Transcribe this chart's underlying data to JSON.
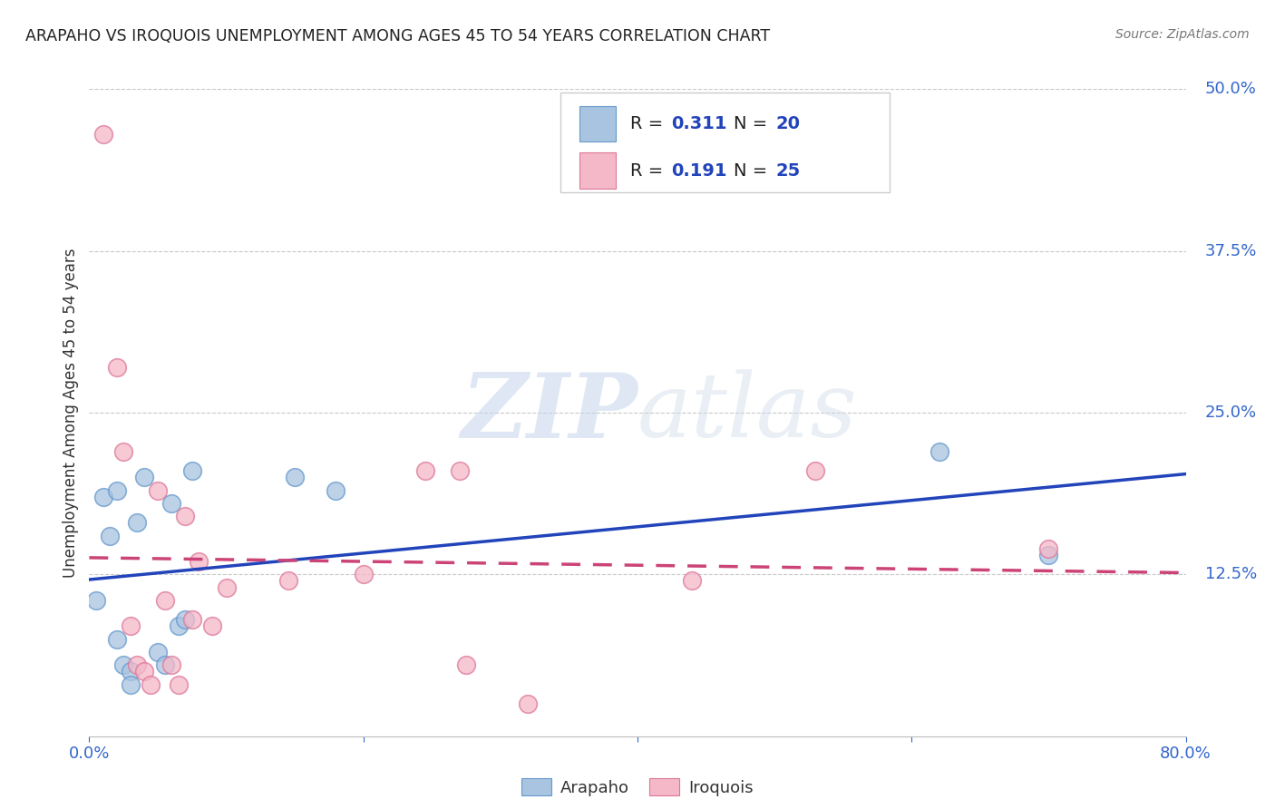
{
  "title": "ARAPAHO VS IROQUOIS UNEMPLOYMENT AMONG AGES 45 TO 54 YEARS CORRELATION CHART",
  "source": "Source: ZipAtlas.com",
  "ylabel": "Unemployment Among Ages 45 to 54 years",
  "xlim": [
    0.0,
    0.8
  ],
  "ylim": [
    0.0,
    0.5
  ],
  "xticks": [
    0.0,
    0.2,
    0.4,
    0.6,
    0.8
  ],
  "xticklabels": [
    "0.0%",
    "",
    "",
    "",
    "80.0%"
  ],
  "ytick_right_labels": [
    "50.0%",
    "37.5%",
    "25.0%",
    "12.5%",
    ""
  ],
  "ytick_right_values": [
    0.5,
    0.375,
    0.25,
    0.125,
    0.0
  ],
  "background_color": "#ffffff",
  "grid_color": "#c8c8c8",
  "watermark_zip": "ZIP",
  "watermark_atlas": "atlas",
  "arapaho_color": "#a8c4e0",
  "arapaho_edge_color": "#6699cc",
  "iroquois_color": "#f4b8c8",
  "iroquois_edge_color": "#dd7799",
  "arapaho_line_color": "#2244bb",
  "iroquois_line_color": "#cc4477",
  "legend_text_color": "#2244bb",
  "legend_R_color": "#2244bb",
  "arapaho_x": [
    0.005,
    0.01,
    0.015,
    0.02,
    0.02,
    0.025,
    0.03,
    0.03,
    0.035,
    0.04,
    0.05,
    0.055,
    0.06,
    0.065,
    0.07,
    0.075,
    0.15,
    0.18,
    0.62,
    0.7
  ],
  "arapaho_y": [
    0.105,
    0.185,
    0.155,
    0.19,
    0.075,
    0.055,
    0.05,
    0.04,
    0.165,
    0.2,
    0.065,
    0.055,
    0.18,
    0.085,
    0.09,
    0.205,
    0.2,
    0.19,
    0.22,
    0.14
  ],
  "iroquois_x": [
    0.01,
    0.02,
    0.025,
    0.03,
    0.035,
    0.04,
    0.045,
    0.05,
    0.055,
    0.06,
    0.065,
    0.07,
    0.075,
    0.08,
    0.09,
    0.1,
    0.145,
    0.2,
    0.245,
    0.27,
    0.275,
    0.32,
    0.44,
    0.53,
    0.7
  ],
  "iroquois_y": [
    0.465,
    0.285,
    0.22,
    0.085,
    0.055,
    0.05,
    0.04,
    0.19,
    0.105,
    0.055,
    0.04,
    0.17,
    0.09,
    0.135,
    0.085,
    0.115,
    0.12,
    0.125,
    0.205,
    0.205,
    0.055,
    0.025,
    0.12,
    0.205,
    0.145
  ]
}
